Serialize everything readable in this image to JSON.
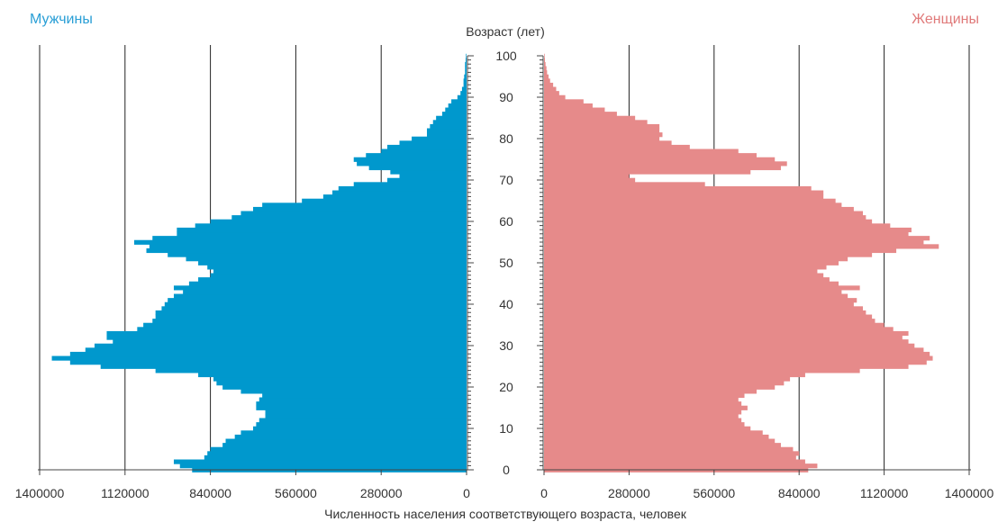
{
  "labels": {
    "men": "Мужчины",
    "women": "Женщины",
    "age_axis": "Возраст (лет)",
    "x_axis": "Численность населения соответствующего возраста,  человек"
  },
  "colors": {
    "men": "#0098cd",
    "women": "#e68a8a",
    "men_title": "#2a9fd6",
    "women_title": "#e07a7a",
    "grid": "#222222"
  },
  "chart_data": {
    "type": "bar",
    "orientation": "horizontal-population-pyramid",
    "title": "",
    "ylabel": "Возраст (лет)",
    "xlabel": "Численность населения соответствующего возраста,  человек",
    "x_range": [
      0,
      1400000
    ],
    "y_range": [
      0,
      100
    ],
    "x_ticks": [
      0,
      280000,
      560000,
      840000,
      1120000,
      1400000
    ],
    "x_tick_labels_left": [
      "1400000",
      "1120000",
      "840000",
      "560000",
      "280000",
      "0"
    ],
    "x_tick_labels_right": [
      "0",
      "280000",
      "560000",
      "840000",
      "1120000",
      "1400000"
    ],
    "y_ticks": [
      0,
      10,
      20,
      30,
      40,
      50,
      60,
      70,
      80,
      90,
      100
    ],
    "y_tick_labels": [
      "0",
      "10",
      "20",
      "30",
      "40",
      "50",
      "60",
      "70",
      "80",
      "90",
      "100"
    ],
    "grid": true,
    "ages": [
      0,
      1,
      2,
      3,
      4,
      5,
      6,
      7,
      8,
      9,
      10,
      11,
      12,
      13,
      14,
      15,
      16,
      17,
      18,
      19,
      20,
      21,
      22,
      23,
      24,
      25,
      26,
      27,
      28,
      29,
      30,
      31,
      32,
      33,
      34,
      35,
      36,
      37,
      38,
      39,
      40,
      41,
      42,
      43,
      44,
      45,
      46,
      47,
      48,
      49,
      50,
      51,
      52,
      53,
      54,
      55,
      56,
      57,
      58,
      59,
      60,
      61,
      62,
      63,
      64,
      65,
      66,
      67,
      68,
      69,
      70,
      71,
      72,
      73,
      74,
      75,
      76,
      77,
      78,
      79,
      80,
      81,
      82,
      83,
      84,
      85,
      86,
      87,
      88,
      89,
      90,
      91,
      92,
      93,
      94,
      95,
      96,
      97,
      98,
      99,
      100
    ],
    "series": [
      {
        "name": "Мужчины",
        "side": "left",
        "values": [
          900000,
          940000,
          960000,
          860000,
          850000,
          840000,
          800000,
          790000,
          760000,
          740000,
          700000,
          690000,
          680000,
          660000,
          660000,
          690000,
          690000,
          680000,
          670000,
          740000,
          800000,
          820000,
          830000,
          880000,
          1020000,
          1200000,
          1300000,
          1360000,
          1300000,
          1250000,
          1220000,
          1160000,
          1180000,
          1180000,
          1080000,
          1060000,
          1030000,
          1020000,
          1020000,
          1000000,
          990000,
          980000,
          960000,
          930000,
          960000,
          910000,
          880000,
          840000,
          830000,
          850000,
          880000,
          920000,
          980000,
          1050000,
          1040000,
          1090000,
          1030000,
          950000,
          950000,
          890000,
          840000,
          770000,
          740000,
          700000,
          670000,
          540000,
          470000,
          440000,
          420000,
          370000,
          260000,
          220000,
          250000,
          320000,
          360000,
          370000,
          330000,
          280000,
          260000,
          220000,
          180000,
          130000,
          130000,
          120000,
          110000,
          100000,
          80000,
          70000,
          60000,
          50000,
          30000,
          20000,
          15000,
          10000,
          10000,
          8000,
          5000,
          5000,
          5000,
          3000,
          2000
        ]
      },
      {
        "name": "Женщины",
        "side": "right",
        "values": [
          870000,
          900000,
          860000,
          830000,
          840000,
          820000,
          780000,
          760000,
          740000,
          720000,
          680000,
          660000,
          650000,
          640000,
          650000,
          670000,
          650000,
          640000,
          660000,
          700000,
          760000,
          790000,
          810000,
          860000,
          1040000,
          1200000,
          1260000,
          1280000,
          1270000,
          1250000,
          1220000,
          1200000,
          1180000,
          1200000,
          1150000,
          1120000,
          1090000,
          1080000,
          1060000,
          1050000,
          1020000,
          1030000,
          1000000,
          980000,
          1040000,
          970000,
          940000,
          920000,
          900000,
          930000,
          970000,
          1000000,
          1080000,
          1160000,
          1300000,
          1250000,
          1270000,
          1200000,
          1210000,
          1140000,
          1080000,
          1060000,
          1050000,
          1020000,
          980000,
          960000,
          920000,
          920000,
          880000,
          530000,
          300000,
          280000,
          680000,
          780000,
          800000,
          760000,
          700000,
          640000,
          480000,
          420000,
          380000,
          390000,
          380000,
          380000,
          340000,
          300000,
          240000,
          200000,
          160000,
          130000,
          70000,
          50000,
          40000,
          30000,
          20000,
          15000,
          10000,
          8000,
          5000,
          3000,
          2000
        ]
      }
    ]
  }
}
